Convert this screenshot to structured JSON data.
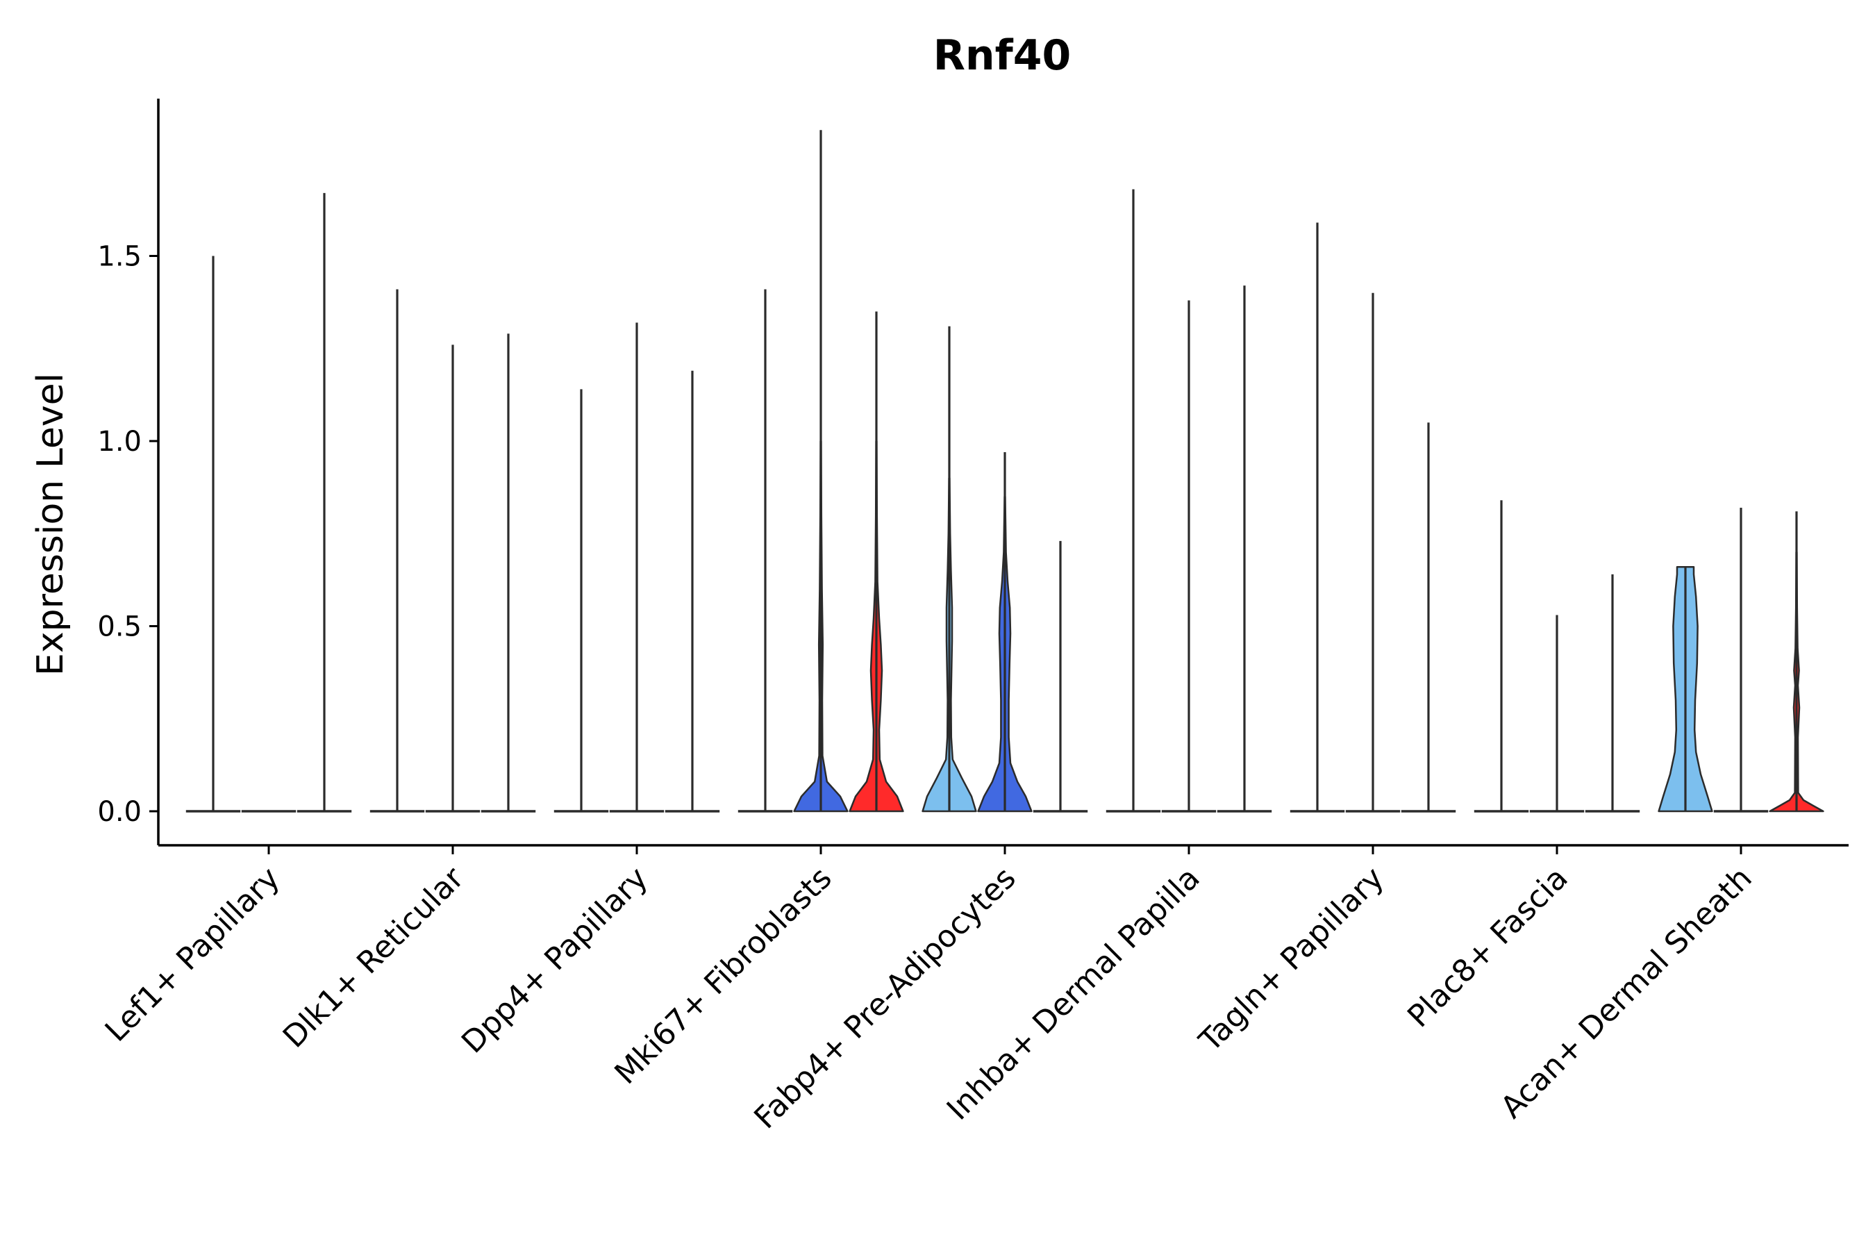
{
  "chart_data": {
    "type": "violin",
    "title": "Rnf40",
    "xlabel": "",
    "ylabel": "Expression Level",
    "ylim": [
      -0.09,
      1.95
    ],
    "yticks": [
      0.0,
      0.5,
      1.0,
      1.5
    ],
    "ytick_labels": [
      "0.0",
      "0.5",
      "1.0",
      "1.5"
    ],
    "grid": false,
    "legend": "none",
    "categories": [
      "Lef1+ Papillary",
      "Dlk1+ Reticular",
      "Dpp4+ Papillary",
      "Mki67+ Fibroblasts",
      "Fabp4+ Pre-Adipocytes",
      "Inhba+ Dermal Papilla",
      "Tagln+ Papillary",
      "Plac8+ Fascia",
      "Acan+ Dermal Sheath"
    ],
    "series_colors": {
      "group_1": "#7cbfee",
      "group_2": "#4169e1",
      "group_3": "#ff2a2a"
    },
    "violins": [
      {
        "category": "Lef1+ Papillary",
        "group": "group_1",
        "max": 1.5,
        "density": [
          [
            0,
            0.4
          ]
        ]
      },
      {
        "category": "Lef1+ Papillary",
        "group": "group_2",
        "max": 0.0,
        "density": [
          [
            0,
            0.4
          ]
        ]
      },
      {
        "category": "Lef1+ Papillary",
        "group": "group_3",
        "max": 1.67,
        "density": [
          [
            0,
            0.4
          ]
        ]
      },
      {
        "category": "Dlk1+ Reticular",
        "group": "group_1",
        "max": 1.41,
        "density": [
          [
            0,
            0.4
          ]
        ]
      },
      {
        "category": "Dlk1+ Reticular",
        "group": "group_2",
        "max": 1.26,
        "density": [
          [
            0,
            0.4
          ]
        ]
      },
      {
        "category": "Dlk1+ Reticular",
        "group": "group_3",
        "max": 1.29,
        "density": [
          [
            0,
            0.4
          ]
        ]
      },
      {
        "category": "Dpp4+ Papillary",
        "group": "group_1",
        "max": 1.14,
        "density": [
          [
            0,
            0.4
          ]
        ]
      },
      {
        "category": "Dpp4+ Papillary",
        "group": "group_2",
        "max": 1.32,
        "density": [
          [
            0,
            0.4
          ]
        ]
      },
      {
        "category": "Dpp4+ Papillary",
        "group": "group_3",
        "max": 1.19,
        "density": [
          [
            0,
            0.4
          ]
        ]
      },
      {
        "category": "Mki67+ Fibroblasts",
        "group": "group_1",
        "max": 1.41,
        "density": [
          [
            0,
            0.4
          ]
        ]
      },
      {
        "category": "Mki67+ Fibroblasts",
        "group": "group_2",
        "max": 1.84,
        "fill": true,
        "density": [
          [
            0,
            0.96
          ],
          [
            0.04,
            0.7
          ],
          [
            0.08,
            0.22
          ],
          [
            0.15,
            0.06
          ],
          [
            0.3,
            0.05
          ],
          [
            0.45,
            0.07
          ],
          [
            0.6,
            0.04
          ],
          [
            0.8,
            0.02
          ],
          [
            1.0,
            0.01
          ]
        ]
      },
      {
        "category": "Mki67+ Fibroblasts",
        "group": "group_3",
        "max": 1.35,
        "fill": true,
        "density": [
          [
            0,
            0.96
          ],
          [
            0.04,
            0.75
          ],
          [
            0.08,
            0.35
          ],
          [
            0.14,
            0.12
          ],
          [
            0.22,
            0.1
          ],
          [
            0.3,
            0.16
          ],
          [
            0.38,
            0.2
          ],
          [
            0.45,
            0.16
          ],
          [
            0.52,
            0.1
          ],
          [
            0.62,
            0.04
          ],
          [
            0.8,
            0.02
          ],
          [
            1.0,
            0.01
          ]
        ]
      },
      {
        "category": "Fabp4+ Pre-Adipocytes",
        "group": "group_1",
        "max": 1.31,
        "fill": true,
        "density": [
          [
            0,
            0.96
          ],
          [
            0.04,
            0.8
          ],
          [
            0.09,
            0.45
          ],
          [
            0.14,
            0.12
          ],
          [
            0.2,
            0.07
          ],
          [
            0.3,
            0.06
          ],
          [
            0.38,
            0.08
          ],
          [
            0.46,
            0.1
          ],
          [
            0.55,
            0.1
          ],
          [
            0.65,
            0.06
          ],
          [
            0.75,
            0.03
          ],
          [
            0.9,
            0.01
          ]
        ]
      },
      {
        "category": "Fabp4+ Pre-Adipocytes",
        "group": "group_2",
        "max": 0.97,
        "fill": true,
        "density": [
          [
            0,
            0.96
          ],
          [
            0.04,
            0.75
          ],
          [
            0.08,
            0.45
          ],
          [
            0.13,
            0.2
          ],
          [
            0.2,
            0.14
          ],
          [
            0.3,
            0.14
          ],
          [
            0.4,
            0.17
          ],
          [
            0.48,
            0.2
          ],
          [
            0.55,
            0.18
          ],
          [
            0.62,
            0.1
          ],
          [
            0.7,
            0.04
          ],
          [
            0.85,
            0.01
          ]
        ]
      },
      {
        "category": "Fabp4+ Pre-Adipocytes",
        "group": "group_3",
        "max": 0.73,
        "density": [
          [
            0,
            0.4
          ]
        ]
      },
      {
        "category": "Inhba+ Dermal Papilla",
        "group": "group_1",
        "max": 1.68,
        "density": [
          [
            0,
            0.4
          ]
        ]
      },
      {
        "category": "Inhba+ Dermal Papilla",
        "group": "group_2",
        "max": 1.38,
        "density": [
          [
            0,
            0.4
          ]
        ]
      },
      {
        "category": "Inhba+ Dermal Papilla",
        "group": "group_3",
        "max": 1.42,
        "density": [
          [
            0,
            0.4
          ]
        ]
      },
      {
        "category": "Tagln+ Papillary",
        "group": "group_1",
        "max": 1.59,
        "density": [
          [
            0,
            0.4
          ]
        ]
      },
      {
        "category": "Tagln+ Papillary",
        "group": "group_2",
        "max": 1.4,
        "density": [
          [
            0,
            0.4
          ]
        ]
      },
      {
        "category": "Tagln+ Papillary",
        "group": "group_3",
        "max": 1.05,
        "density": [
          [
            0,
            0.4
          ]
        ]
      },
      {
        "category": "Plac8+ Fascia",
        "group": "group_1",
        "max": 0.84,
        "density": [
          [
            0,
            0.4
          ]
        ]
      },
      {
        "category": "Plac8+ Fascia",
        "group": "group_2",
        "max": 0.53,
        "density": [
          [
            0,
            0.4
          ]
        ]
      },
      {
        "category": "Plac8+ Fascia",
        "group": "group_3",
        "max": 0.64,
        "density": [
          [
            0,
            0.4
          ]
        ]
      },
      {
        "category": "Acan+ Dermal Sheath",
        "group": "group_1",
        "max": 0.66,
        "fill": true,
        "density": [
          [
            0,
            0.96
          ],
          [
            0.04,
            0.8
          ],
          [
            0.1,
            0.55
          ],
          [
            0.16,
            0.38
          ],
          [
            0.22,
            0.33
          ],
          [
            0.3,
            0.35
          ],
          [
            0.4,
            0.42
          ],
          [
            0.5,
            0.44
          ],
          [
            0.58,
            0.38
          ],
          [
            0.64,
            0.3
          ],
          [
            0.66,
            0.3
          ]
        ]
      },
      {
        "category": "Acan+ Dermal Sheath",
        "group": "group_2",
        "max": 0.82,
        "density": [
          [
            0,
            0.4
          ]
        ]
      },
      {
        "category": "Acan+ Dermal Sheath",
        "group": "group_3",
        "max": 0.81,
        "fill": true,
        "density": [
          [
            0,
            0.96
          ],
          [
            0.015,
            0.6
          ],
          [
            0.03,
            0.25
          ],
          [
            0.05,
            0.06
          ],
          [
            0.2,
            0.05
          ],
          [
            0.28,
            0.1
          ],
          [
            0.34,
            0.05
          ],
          [
            0.38,
            0.09
          ],
          [
            0.44,
            0.04
          ],
          [
            0.55,
            0.02
          ],
          [
            0.7,
            0.01
          ]
        ]
      }
    ]
  }
}
